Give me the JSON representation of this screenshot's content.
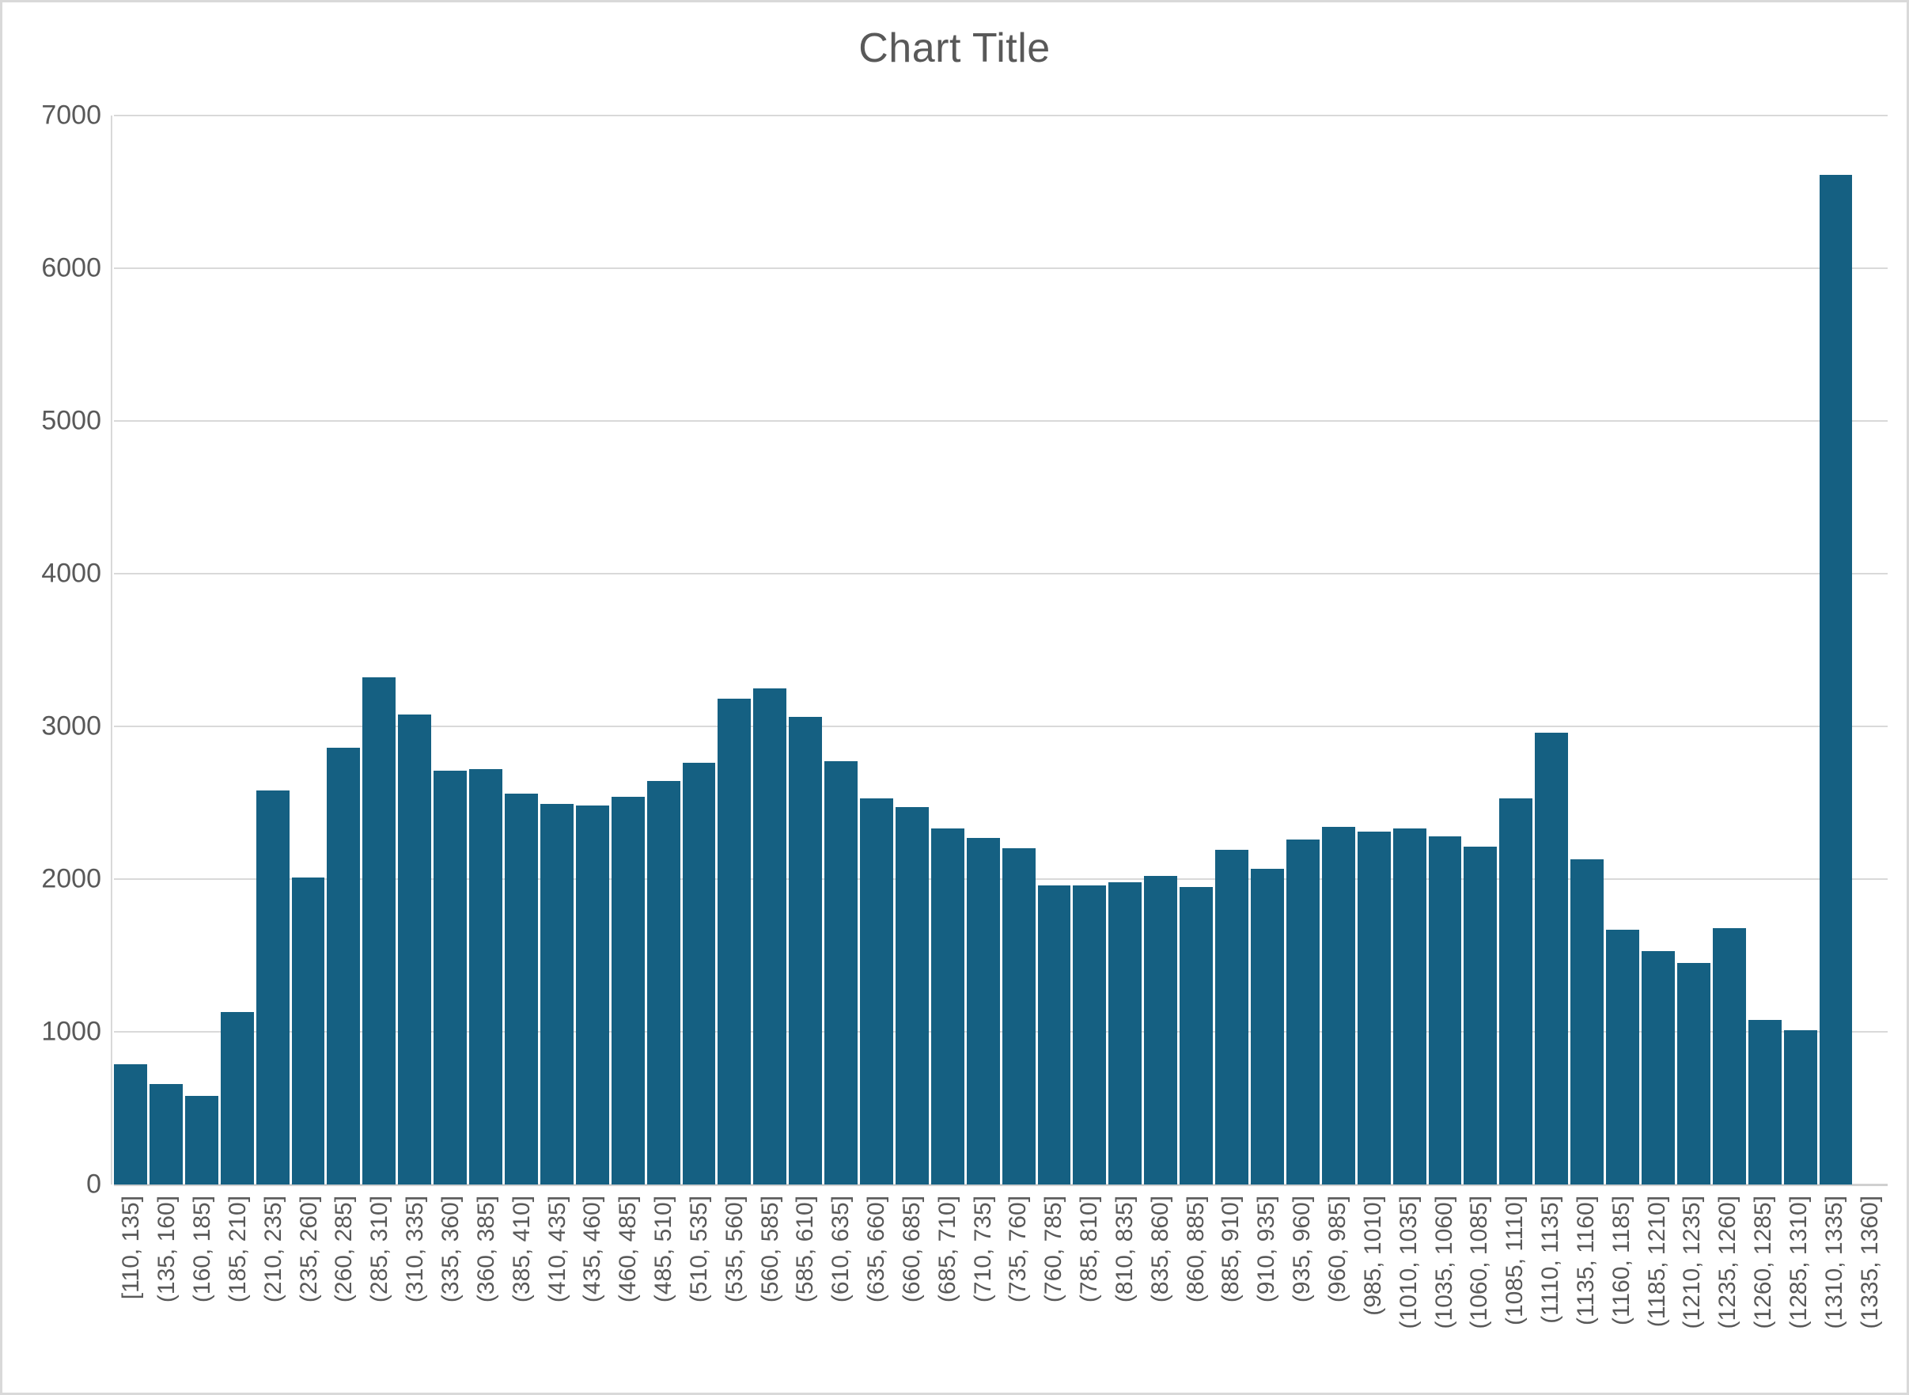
{
  "window": {
    "background": "#ffffff",
    "border_color": "#d9d9d9"
  },
  "chart_data": {
    "type": "bar",
    "title": "Chart Title",
    "categories": [
      "[110, 135]",
      "(135, 160]",
      "(160, 185]",
      "(185, 210]",
      "(210, 235]",
      "(235, 260]",
      "(260, 285]",
      "(285, 310]",
      "(310, 335]",
      "(335, 360]",
      "(360, 385]",
      "(385, 410]",
      "(410, 435]",
      "(435, 460]",
      "(460, 485]",
      "(485, 510]",
      "(510, 535]",
      "(535, 560]",
      "(560, 585]",
      "(585, 610]",
      "(610, 635]",
      "(635, 660]",
      "(660, 685]",
      "(685, 710]",
      "(710, 735]",
      "(735, 760]",
      "(760, 785]",
      "(785, 810]",
      "(810, 835]",
      "(835, 860]",
      "(860, 885]",
      "(885, 910]",
      "(910, 935]",
      "(935, 960]",
      "(960, 985]",
      "(985, 1010]",
      "(1010, 1035]",
      "(1035, 1060]",
      "(1060, 1085]",
      "(1085, 1110]",
      "(1110, 1135]",
      "(1135, 1160]",
      "(1160, 1185]",
      "(1185, 1210]",
      "(1210, 1235]",
      "(1235, 1260]",
      "(1260, 1285]",
      "(1285, 1310]",
      "(1310, 1335]",
      "(1335, 1360]"
    ],
    "values": [
      790,
      660,
      580,
      1130,
      2580,
      2010,
      2860,
      3320,
      3080,
      2710,
      2720,
      2560,
      2490,
      2480,
      2540,
      2640,
      2760,
      3180,
      3250,
      3060,
      2770,
      2530,
      2470,
      2330,
      2270,
      2200,
      1960,
      1960,
      1980,
      2020,
      1950,
      2190,
      2070,
      2260,
      2340,
      2310,
      2330,
      2280,
      2210,
      2530,
      2960,
      2130,
      1670,
      1530,
      1450,
      1680,
      1080,
      1010,
      6610,
      0
    ],
    "xlabel": "",
    "ylabel": "",
    "ylim": [
      0,
      7000
    ],
    "y_ticks": [
      0,
      1000,
      2000,
      3000,
      4000,
      5000,
      6000,
      7000
    ],
    "grid": true,
    "legend": "none",
    "x_label_rotation": -90,
    "bar_color": "#156082",
    "gridline_color": "#d9d9d9",
    "axis_line_color": "#d0d0d0",
    "label_color": "#595959",
    "title_color": "#595959"
  }
}
